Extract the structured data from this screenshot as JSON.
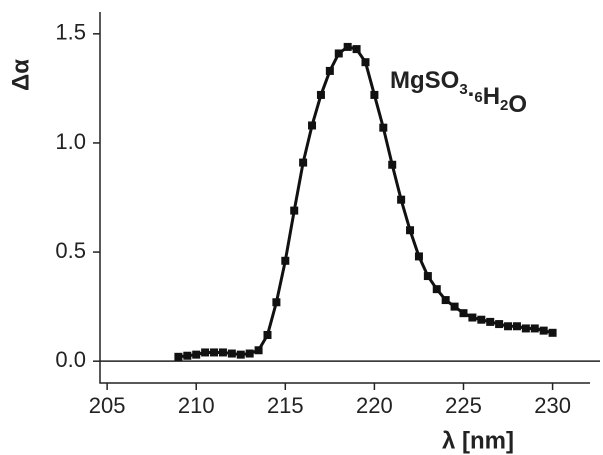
{
  "chart_data": {
    "type": "line",
    "x_label": "λ [nm]",
    "y_label": "Δα",
    "annotation": "MgSO3.6H2O",
    "x": [
      209,
      209.5,
      210,
      210.5,
      211,
      211.5,
      212,
      212.5,
      213,
      213.5,
      214,
      214.5,
      215,
      215.5,
      216,
      216.5,
      217,
      217.5,
      218,
      218.5,
      219,
      219.5,
      220,
      220.5,
      221,
      221.5,
      222,
      222.5,
      223,
      223.5,
      224,
      224.5,
      225,
      225.5,
      226,
      226.5,
      227,
      227.5,
      228,
      228.5,
      229,
      229.5,
      230
    ],
    "series": [
      {
        "color": "#111111",
        "values": [
          0.02,
          0.025,
          0.03,
          0.04,
          0.04,
          0.04,
          0.035,
          0.03,
          0.035,
          0.05,
          0.12,
          0.27,
          0.46,
          0.69,
          0.91,
          1.08,
          1.22,
          1.33,
          1.41,
          1.44,
          1.43,
          1.37,
          1.22,
          1.07,
          0.9,
          0.74,
          0.6,
          0.48,
          0.39,
          0.33,
          0.28,
          0.25,
          0.22,
          0.2,
          0.19,
          0.18,
          0.17,
          0.16,
          0.16,
          0.15,
          0.15,
          0.14,
          0.13
        ]
      }
    ],
    "xlim": [
      204.6,
      232.1
    ],
    "ylim": [
      -0.1,
      1.6
    ],
    "xticks": [
      205,
      210,
      215,
      220,
      225,
      230
    ],
    "yticks": [
      {
        "value": 0,
        "label": "0.0"
      },
      {
        "value": 0.5,
        "label": "0.5"
      },
      {
        "value": 1,
        "label": "1.0"
      },
      {
        "value": 1.5,
        "label": "1.5"
      }
    ],
    "zero_line": true
  }
}
